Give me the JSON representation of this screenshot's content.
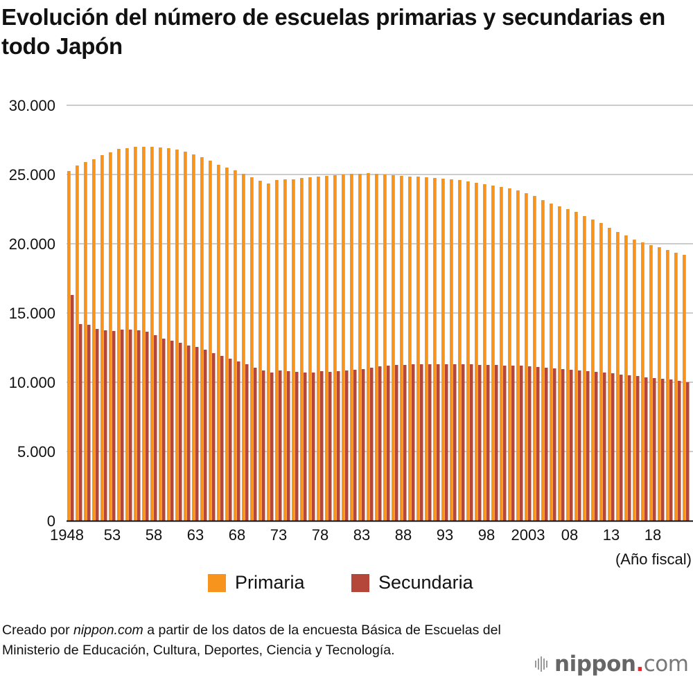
{
  "title": "Evolución del número de escuelas primarias y secundarias en todo Japón",
  "chart_data": {
    "type": "bar",
    "title": "Evolución del número de escuelas primarias y secundarias en todo Japón",
    "xlabel": "(Año fiscal)",
    "ylabel": "",
    "ylim": [
      0,
      30000
    ],
    "yticks": [
      0,
      5000,
      10000,
      15000,
      20000,
      25000,
      30000
    ],
    "ytick_labels": [
      "0",
      "5.000",
      "10.000",
      "15.000",
      "20.000",
      "25.000",
      "30.000"
    ],
    "grid": true,
    "legend_position": "bottom",
    "categories": [
      1948,
      1949,
      1950,
      1951,
      1952,
      1953,
      1954,
      1955,
      1956,
      1957,
      1958,
      1959,
      1960,
      1961,
      1962,
      1963,
      1964,
      1965,
      1966,
      1967,
      1968,
      1969,
      1970,
      1971,
      1972,
      1973,
      1974,
      1975,
      1976,
      1977,
      1978,
      1979,
      1980,
      1981,
      1982,
      1983,
      1984,
      1985,
      1986,
      1987,
      1988,
      1989,
      1990,
      1991,
      1992,
      1993,
      1994,
      1995,
      1996,
      1997,
      1998,
      1999,
      2000,
      2001,
      2002,
      2003,
      2004,
      2005,
      2006,
      2007,
      2008,
      2009,
      2010,
      2011,
      2012,
      2013,
      2014,
      2015,
      2016,
      2017,
      2018,
      2019,
      2020,
      2021,
      2022
    ],
    "xtick_labels": [
      {
        "year": 1948,
        "label": "1948"
      },
      {
        "year": 1953,
        "label": "53"
      },
      {
        "year": 1958,
        "label": "58"
      },
      {
        "year": 1963,
        "label": "63"
      },
      {
        "year": 1968,
        "label": "68"
      },
      {
        "year": 1973,
        "label": "73"
      },
      {
        "year": 1978,
        "label": "78"
      },
      {
        "year": 1983,
        "label": "83"
      },
      {
        "year": 1988,
        "label": "88"
      },
      {
        "year": 1993,
        "label": "93"
      },
      {
        "year": 1998,
        "label": "98"
      },
      {
        "year": 2003,
        "label": "2003"
      },
      {
        "year": 2008,
        "label": "08"
      },
      {
        "year": 2013,
        "label": "13"
      },
      {
        "year": 2018,
        "label": "18"
      }
    ],
    "series": [
      {
        "name": "Primaria",
        "color": "#f7941d",
        "values": [
          25250,
          25650,
          25900,
          26100,
          26400,
          26600,
          26850,
          26900,
          27000,
          27000,
          27000,
          26950,
          26900,
          26800,
          26650,
          26450,
          26250,
          26000,
          25700,
          25500,
          25300,
          25050,
          24800,
          24550,
          24350,
          24600,
          24650,
          24650,
          24750,
          24800,
          24850,
          24900,
          24950,
          25000,
          25050,
          25050,
          25100,
          25050,
          25000,
          24950,
          24900,
          24850,
          24850,
          24800,
          24750,
          24700,
          24650,
          24600,
          24500,
          24400,
          24300,
          24200,
          24100,
          24000,
          23850,
          23650,
          23450,
          23150,
          22900,
          22700,
          22500,
          22300,
          22000,
          21750,
          21500,
          21150,
          20850,
          20600,
          20300,
          20100,
          19900,
          19750,
          19550,
          19350,
          19200
        ]
      },
      {
        "name": "Secundaria",
        "color": "#b5473a",
        "values": [
          16300,
          14200,
          14150,
          13850,
          13750,
          13700,
          13800,
          13800,
          13750,
          13650,
          13400,
          13150,
          13000,
          12850,
          12650,
          12550,
          12350,
          12100,
          11900,
          11700,
          11500,
          11300,
          11050,
          10850,
          10700,
          10850,
          10800,
          10750,
          10700,
          10700,
          10800,
          10750,
          10800,
          10850,
          10900,
          10950,
          11050,
          11150,
          11200,
          11250,
          11250,
          11300,
          11300,
          11300,
          11300,
          11300,
          11300,
          11300,
          11300,
          11250,
          11250,
          11250,
          11200,
          11200,
          11200,
          11150,
          11100,
          11050,
          11000,
          10950,
          10900,
          10850,
          10800,
          10750,
          10700,
          10650,
          10550,
          10500,
          10450,
          10350,
          10300,
          10250,
          10200,
          10100,
          10000
        ]
      }
    ]
  },
  "legend": [
    {
      "label": "Primaria",
      "color": "#f7941d"
    },
    {
      "label": "Secundaria",
      "color": "#b5473a"
    }
  ],
  "footer": {
    "prefix": "Creado por ",
    "source_site": "nippon.com",
    "suffix": " a partir de los datos de la encuesta Básica de Escuelas del Ministerio de Educación, Cultura, Deportes, Ciencia y Tecnología."
  },
  "logo": {
    "name": "nippon",
    "dot": ".",
    "tld": "com",
    "icon": "sound-bars-icon"
  }
}
